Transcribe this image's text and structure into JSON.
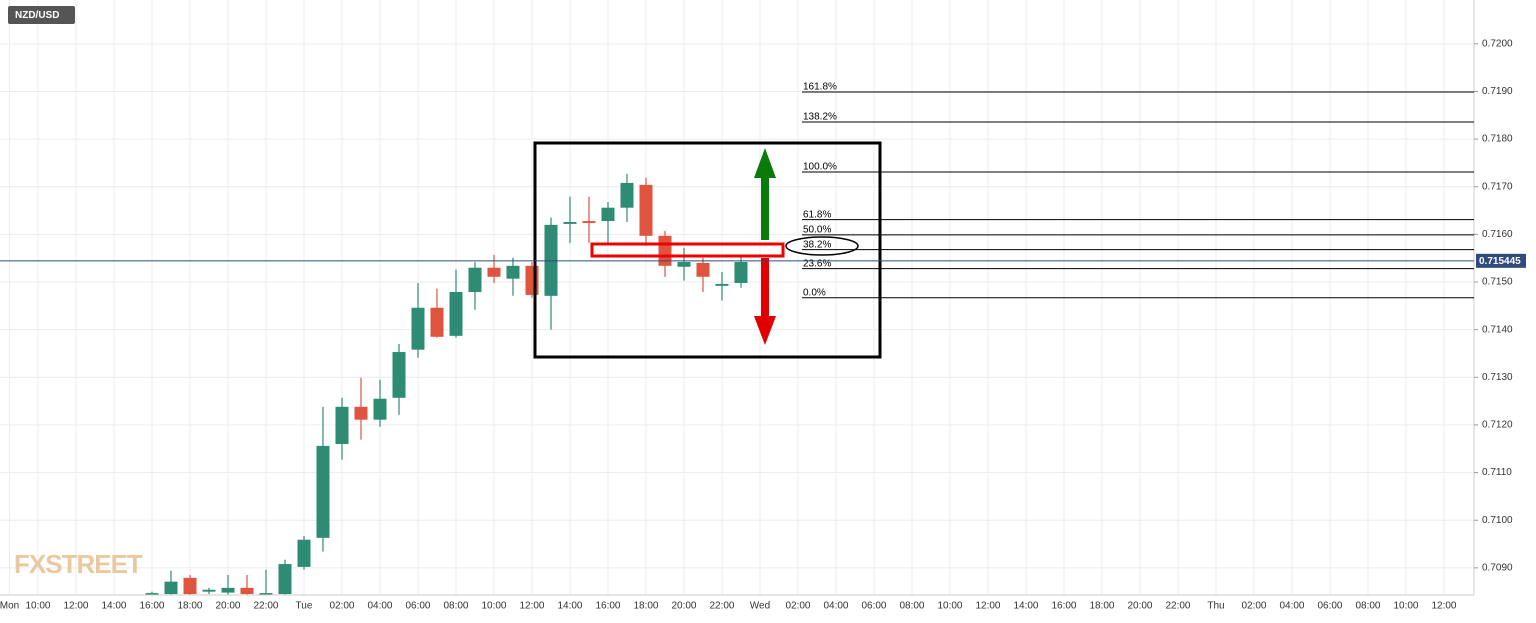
{
  "chart_data": {
    "type": "candlestick",
    "title": "NZD/USD",
    "watermark": "FXSTREET",
    "grid": true,
    "up_color": "#2e8b74",
    "down_color": "#e0533f",
    "x": [
      16,
      17,
      18,
      19,
      20,
      21,
      22,
      23,
      24,
      25,
      26,
      27,
      28,
      29,
      30,
      31,
      32,
      33,
      34,
      35,
      36,
      37,
      38,
      39,
      40,
      41,
      42,
      43,
      44,
      45,
      46,
      47
    ],
    "open": [
      0.70845,
      0.70845,
      0.70879,
      0.7085,
      0.70848,
      0.70858,
      0.70845,
      0.70845,
      0.70902,
      0.70963,
      0.7116,
      0.71238,
      0.71211,
      0.71257,
      0.71358,
      0.71446,
      0.71387,
      0.71479,
      0.7153,
      0.71507,
      0.71534,
      0.71471,
      0.71622,
      0.71628,
      0.71628,
      0.71656,
      0.71704,
      0.71597,
      0.71532,
      0.7154,
      0.71492,
      0.71498
    ],
    "high": [
      0.7085,
      0.70894,
      0.70885,
      0.70858,
      0.70885,
      0.70885,
      0.70896,
      0.70917,
      0.70967,
      0.71238,
      0.71257,
      0.71299,
      0.71295,
      0.7137,
      0.71498,
      0.71486,
      0.71526,
      0.71542,
      0.71557,
      0.71551,
      0.71542,
      0.71635,
      0.71679,
      0.71679,
      0.71668,
      0.71727,
      0.71719,
      0.71607,
      0.71572,
      0.71551,
      0.71521,
      0.71555
    ],
    "low": [
      0.70843,
      0.70843,
      0.70843,
      0.70845,
      0.70843,
      0.70843,
      0.70843,
      0.70843,
      0.70896,
      0.70934,
      0.71127,
      0.71169,
      0.71196,
      0.71221,
      0.71341,
      0.71383,
      0.71383,
      0.71442,
      0.71498,
      0.71471,
      0.71467,
      0.714,
      0.71582,
      0.71582,
      0.71582,
      0.71626,
      0.71576,
      0.71511,
      0.71503,
      0.71479,
      0.71461,
      0.71488
    ],
    "close": [
      0.70847,
      0.70871,
      0.70845,
      0.70854,
      0.70858,
      0.70845,
      0.70847,
      0.70908,
      0.70959,
      0.71156,
      0.71238,
      0.71211,
      0.71255,
      0.71353,
      0.71446,
      0.71385,
      0.71479,
      0.7153,
      0.71511,
      0.71534,
      0.71473,
      0.7162,
      0.71626,
      0.71624,
      0.71656,
      0.71708,
      0.71597,
      0.71534,
      0.71542,
      0.71511,
      0.71496,
      0.71542
    ],
    "current_price": 0.715445,
    "fib_levels": [
      {
        "label": "161.8%",
        "value": 0.71899
      },
      {
        "label": "138.2%",
        "value": 0.71836
      },
      {
        "label": "100.0%",
        "value": 0.71731
      },
      {
        "label": "61.8%",
        "value": 0.71631
      },
      {
        "label": "50.0%",
        "value": 0.71599
      },
      {
        "label": "38.2%",
        "value": 0.71568
      },
      {
        "label": "23.6%",
        "value": 0.71528
      },
      {
        "label": "0.0%",
        "value": 0.71467
      }
    ],
    "ylim": [
      0.70843,
      0.72092
    ],
    "yticks": [
      {
        "value": 0.709,
        "label": "0.7090"
      },
      {
        "value": 0.71,
        "label": "0.7100"
      },
      {
        "value": 0.711,
        "label": "0.7110"
      },
      {
        "value": 0.712,
        "label": "0.7120"
      },
      {
        "value": 0.713,
        "label": "0.7130"
      },
      {
        "value": 0.714,
        "label": "0.7140"
      },
      {
        "value": 0.715,
        "label": "0.7150"
      },
      {
        "value": 0.716,
        "label": "0.7160"
      },
      {
        "value": 0.717,
        "label": "0.7170"
      },
      {
        "value": 0.718,
        "label": "0.7180"
      },
      {
        "value": 0.719,
        "label": "0.7190"
      },
      {
        "value": 0.72,
        "label": "0.7200"
      }
    ],
    "xlim": [
      8,
      85.58
    ],
    "xticks": [
      {
        "value": 8.5,
        "label": "Mon"
      },
      {
        "value": 10,
        "label": "10:00"
      },
      {
        "value": 12,
        "label": "12:00"
      },
      {
        "value": 14,
        "label": "14:00"
      },
      {
        "value": 16,
        "label": "16:00"
      },
      {
        "value": 18,
        "label": "18:00"
      },
      {
        "value": 20,
        "label": "20:00"
      },
      {
        "value": 22,
        "label": "22:00"
      },
      {
        "value": 24,
        "label": "Tue"
      },
      {
        "value": 26,
        "label": "02:00"
      },
      {
        "value": 28,
        "label": "04:00"
      },
      {
        "value": 30,
        "label": "06:00"
      },
      {
        "value": 32,
        "label": "08:00"
      },
      {
        "value": 34,
        "label": "10:00"
      },
      {
        "value": 36,
        "label": "12:00"
      },
      {
        "value": 38,
        "label": "14:00"
      },
      {
        "value": 40,
        "label": "16:00"
      },
      {
        "value": 42,
        "label": "18:00"
      },
      {
        "value": 44,
        "label": "20:00"
      },
      {
        "value": 46,
        "label": "22:00"
      },
      {
        "value": 48,
        "label": "Wed"
      },
      {
        "value": 50,
        "label": "02:00"
      },
      {
        "value": 52,
        "label": "04:00"
      },
      {
        "value": 54,
        "label": "06:00"
      },
      {
        "value": 56,
        "label": "08:00"
      },
      {
        "value": 58,
        "label": "10:00"
      },
      {
        "value": 60,
        "label": "12:00"
      },
      {
        "value": 62,
        "label": "14:00"
      },
      {
        "value": 64,
        "label": "16:00"
      },
      {
        "value": 66,
        "label": "18:00"
      },
      {
        "value": 68,
        "label": "20:00"
      },
      {
        "value": 70,
        "label": "22:00"
      },
      {
        "value": 72,
        "label": "Thu"
      },
      {
        "value": 74,
        "label": "02:00"
      },
      {
        "value": 76,
        "label": "04:00"
      },
      {
        "value": 78,
        "label": "06:00"
      },
      {
        "value": 80,
        "label": "08:00"
      },
      {
        "value": 82,
        "label": "10:00"
      },
      {
        "value": 84,
        "label": "12:00"
      }
    ]
  }
}
